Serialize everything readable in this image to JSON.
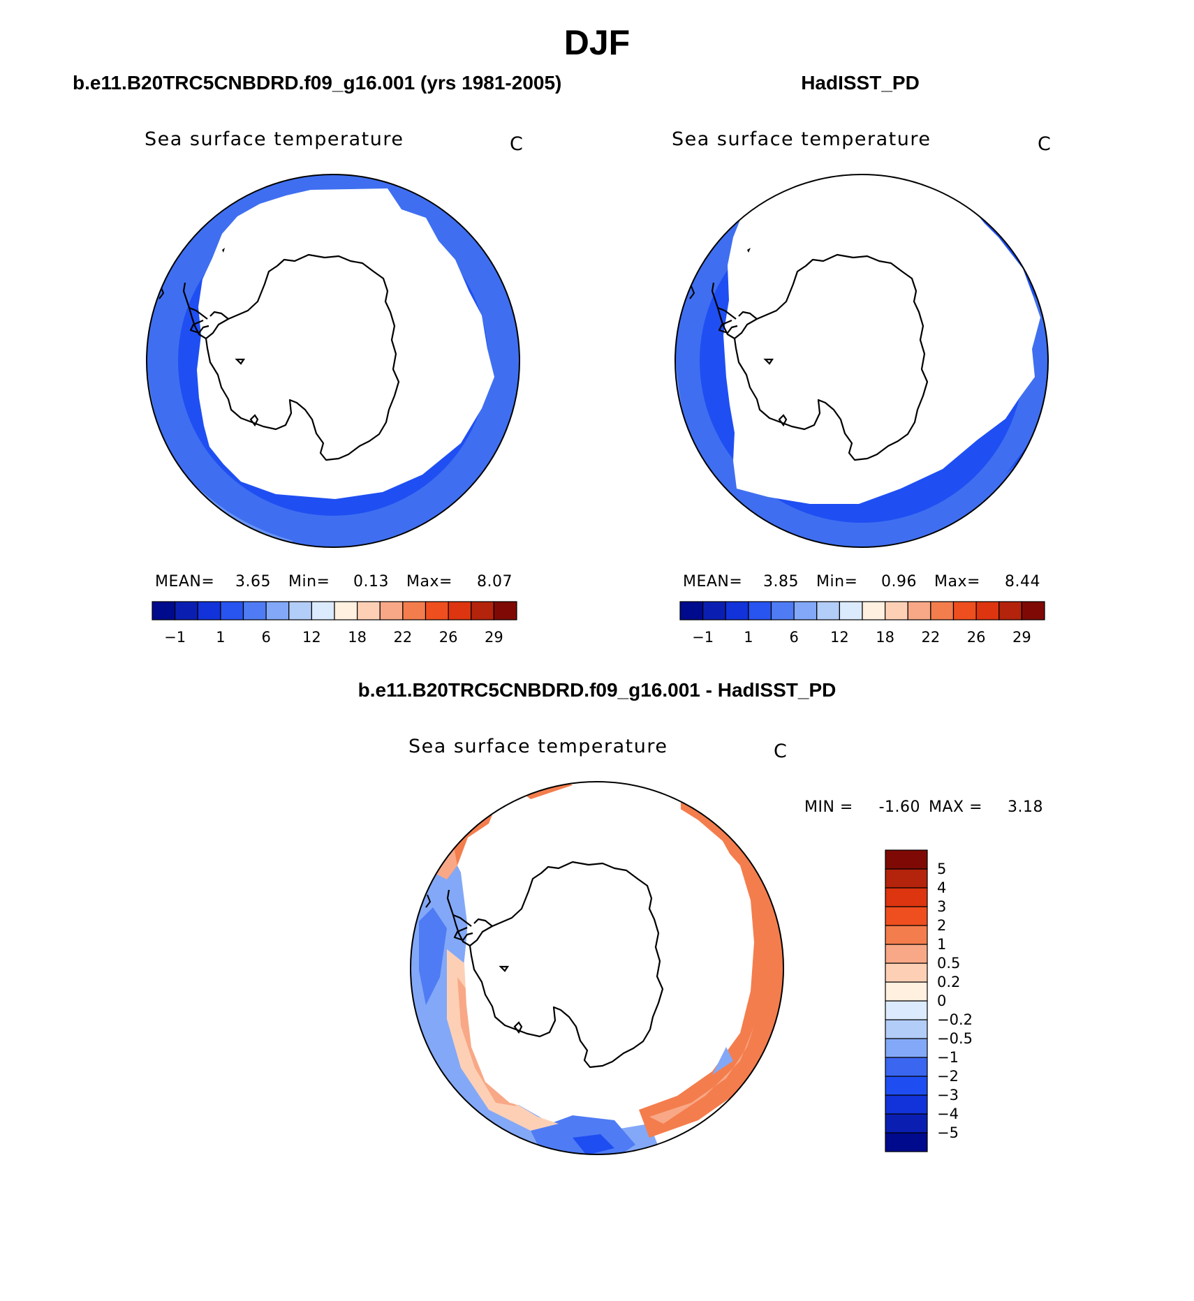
{
  "figure": {
    "season": "DJF",
    "colors": {
      "land": "#ffffff",
      "coast": "#000000"
    }
  },
  "panels": [
    {
      "id": "model",
      "case_title": "b.e11.B20TRC5CNBDRD.f09_g16.001 (yrs 1981-2005)",
      "field_label": "Sea surface temperature",
      "units": "C",
      "stats": {
        "mean_label": "MEAN=",
        "mean": "3.65",
        "min_label": "Min=",
        "min": "0.13",
        "max_label": "Max=",
        "max": "8.07"
      },
      "map": {
        "ice_edge_latitude": "~60S",
        "ocean_bands": [
          "#1f4ff2",
          "#3f6ff0",
          "#6a95f4",
          "#9ab9f5"
        ]
      }
    },
    {
      "id": "obs",
      "case_title": "HadISST_PD",
      "field_label": "Sea surface temperature",
      "units": "C",
      "stats": {
        "mean_label": "MEAN=",
        "mean": "3.85",
        "min_label": "Min=",
        "min": "0.96",
        "max_label": "Max=",
        "max": "8.44"
      },
      "map": {
        "ice_edge_latitude": "~63S",
        "ocean_bands": [
          "#1f4ff2",
          "#3f6ff0",
          "#6a95f4",
          "#9ab9f5"
        ]
      }
    },
    {
      "id": "diff",
      "case_title": "b.e11.B20TRC5CNBDRD.f09_g16.001 - HadISST_PD",
      "field_label": "Sea surface temperature",
      "units": "C",
      "stats": {
        "min_label": "MIN =",
        "min": "-1.60",
        "max_label": "MAX =",
        "max": "3.18"
      }
    }
  ],
  "colorbars": {
    "absolute": {
      "colors": [
        "#000a8c",
        "#0a1fb2",
        "#1233d9",
        "#2854f0",
        "#4f7cf4",
        "#83a8f7",
        "#b3cdf9",
        "#dbeafd",
        "#fff0e0",
        "#fdd0b6",
        "#f8a886",
        "#f47d4d",
        "#ef4f1f",
        "#dc3510",
        "#b4230b",
        "#7f0a05"
      ],
      "tick_labels": [
        "−1",
        "1",
        "6",
        "12",
        "18",
        "22",
        "26",
        "29"
      ],
      "tick_after_box": [
        1,
        3,
        5,
        7,
        9,
        11,
        13,
        15
      ]
    },
    "difference": {
      "colors": [
        "#000a8c",
        "#0a1fb2",
        "#1233d9",
        "#1e4ef2",
        "#3a66f0",
        "#83a8f7",
        "#b3cdf9",
        "#dbeafd",
        "#fff0e0",
        "#fdd0b6",
        "#f8a886",
        "#f47d4d",
        "#ef4f1f",
        "#dc3510",
        "#b4230b",
        "#7f0a05"
      ],
      "tick_labels": [
        "−5",
        "−4",
        "−3",
        "−2",
        "−1",
        "−0.5",
        "−0.2",
        "0",
        "0.2",
        "0.5",
        "1",
        "2",
        "3",
        "4",
        "5"
      ]
    }
  }
}
